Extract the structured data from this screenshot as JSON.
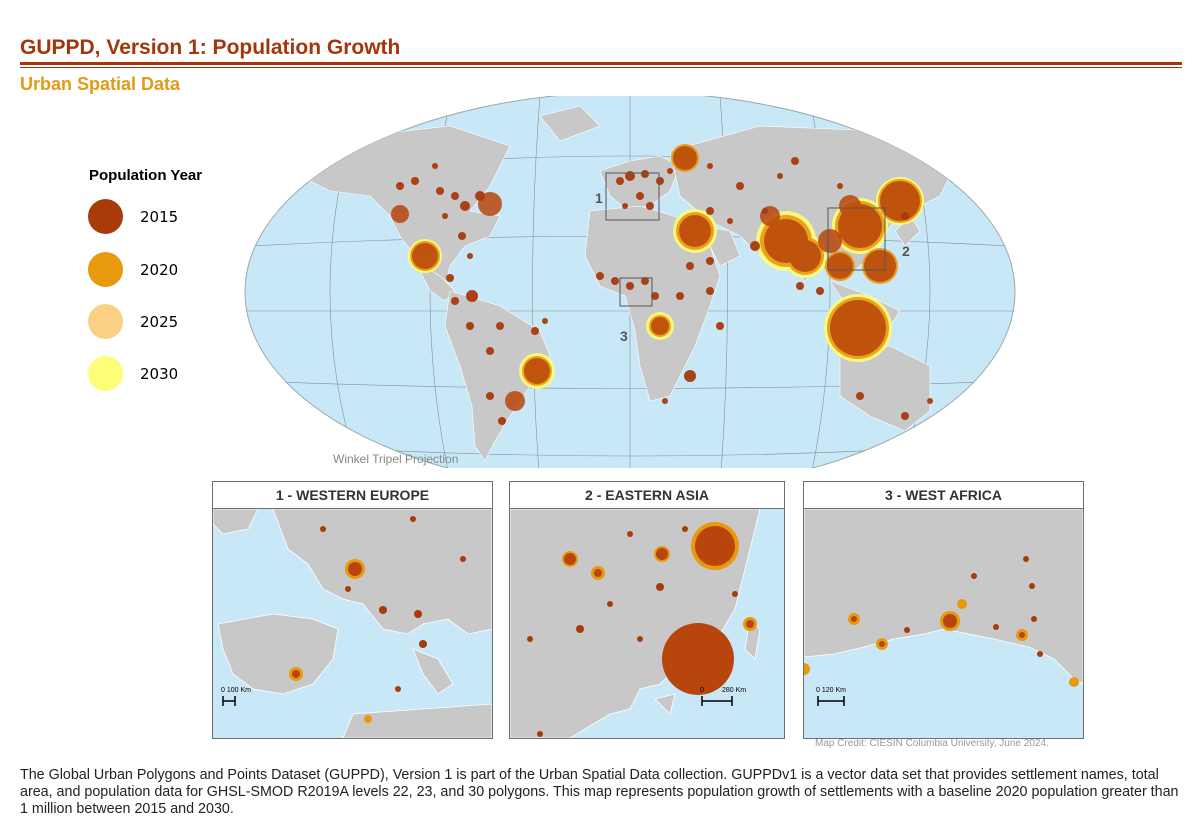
{
  "title": "GUPPD, Version 1: Population Growth",
  "subtitle": "Urban Spatial Data",
  "legend": {
    "title": "Population Year",
    "items": [
      {
        "label": "2015",
        "color": "#a83a0c"
      },
      {
        "label": "2020",
        "color": "#e89a0e"
      },
      {
        "label": "2025",
        "color": "#fbd085"
      },
      {
        "label": "2030",
        "color": "#fdfd78"
      }
    ]
  },
  "map": {
    "projection_label": "Winkel Tripel Projection",
    "callouts": [
      "1",
      "2",
      "3"
    ],
    "ocean_color": "#c8e8f8",
    "land_color": "#c8c8c8"
  },
  "insets": [
    {
      "title": "1  -  WESTERN EUROPE",
      "scale": "0  100  Km"
    },
    {
      "title": "2  -  EASTERN ASIA",
      "scale_start": "0",
      "scale_end": "280  Km"
    },
    {
      "title": "3  -  WEST AFRICA",
      "scale": "0      120  Km"
    }
  ],
  "credit": "Map Credit: CIESIN Columbia University, June 2024.",
  "description": "The Global Urban Polygons and Points Dataset (GUPPD), Version 1 is part of the Urban Spatial Data collection. GUPPDv1 is a vector data set that provides settlement names, total area, and population data for GHSL-SMOD R2019A levels 22, 23, and 30 polygons. This map represents population growth of settlements with a baseline 2020 population greater than 1 million between 2015 and 2030."
}
